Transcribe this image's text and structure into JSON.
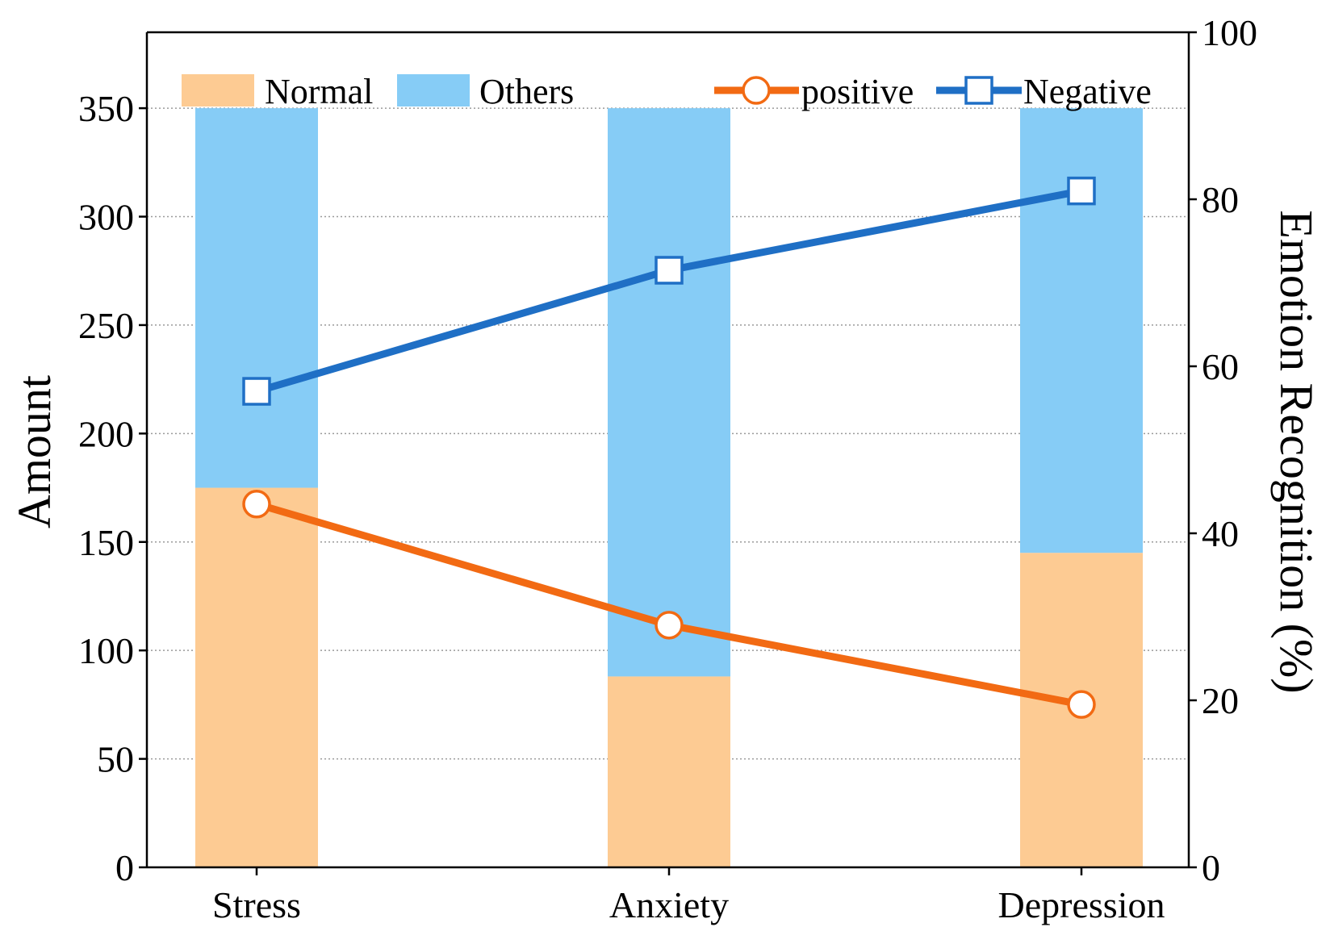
{
  "chart_data": {
    "type": "bar+line",
    "categories": [
      "Stress",
      "Anxiety",
      "Depression"
    ],
    "bars": {
      "stacked": true,
      "series": [
        {
          "name": "Normal",
          "values": [
            175,
            88,
            145
          ],
          "color": "#FDCB93"
        },
        {
          "name": "Others",
          "values": [
            175,
            262,
            205
          ],
          "color": "#86CCF6"
        }
      ]
    },
    "lines": [
      {
        "name": "positive",
        "values": [
          43.5,
          29,
          19.5
        ],
        "color": "#F26A13",
        "marker": "circle"
      },
      {
        "name": "Negative",
        "values": [
          57,
          71.5,
          81
        ],
        "color": "#1F6FC5",
        "marker": "square"
      }
    ],
    "ylabel": "Amount",
    "y2label": "Emotion Recognition (%)",
    "ylim": [
      0,
      385
    ],
    "y2lim": [
      0,
      100
    ],
    "yticks": [
      0,
      50,
      100,
      150,
      200,
      250,
      300,
      350
    ],
    "y2ticks": [
      0,
      20,
      40,
      60,
      80,
      100
    ],
    "grid": "horizontal-dotted",
    "legend_position": "top"
  }
}
